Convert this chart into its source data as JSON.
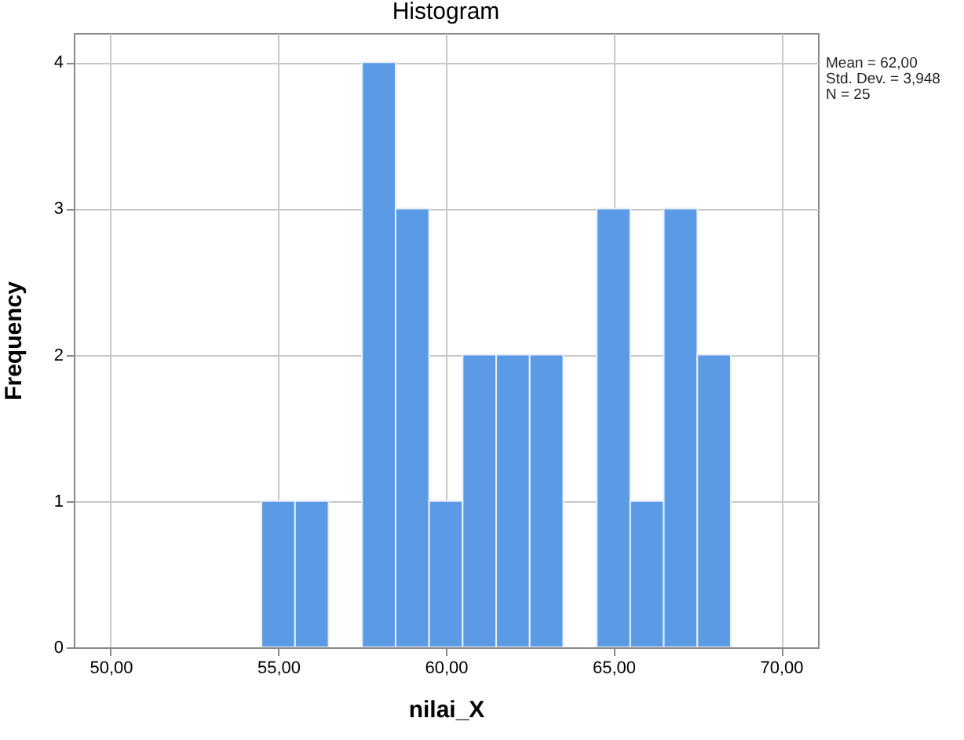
{
  "chart_data": {
    "type": "histogram",
    "title": "Histogram",
    "xlabel": "nilai_X",
    "ylabel": "Frequency",
    "bins": [
      54.5,
      55.5,
      56.5,
      57.5,
      58.5,
      59.5,
      60.5,
      61.5,
      62.5,
      63.5,
      64.5,
      65.5,
      66.5,
      67.5,
      68.5
    ],
    "values": [
      1,
      1,
      0,
      4,
      3,
      1,
      2,
      2,
      2,
      0,
      3,
      1,
      3,
      2
    ],
    "color": "#5b9be6",
    "xlim": [
      48.9,
      71.1
    ],
    "xticks": [
      {
        "value": 50,
        "label": "50,00"
      },
      {
        "value": 55,
        "label": "55,00"
      },
      {
        "value": 60,
        "label": "60,00"
      },
      {
        "value": 65,
        "label": "65,00"
      },
      {
        "value": 70,
        "label": "70,00"
      }
    ],
    "ylim": [
      0,
      4.2
    ],
    "yticks": [
      0,
      1,
      2,
      3,
      4
    ],
    "grid": true,
    "annotations": [
      "Mean = 62,00",
      "Std. Dev. = 3,948",
      "N = 25"
    ]
  }
}
